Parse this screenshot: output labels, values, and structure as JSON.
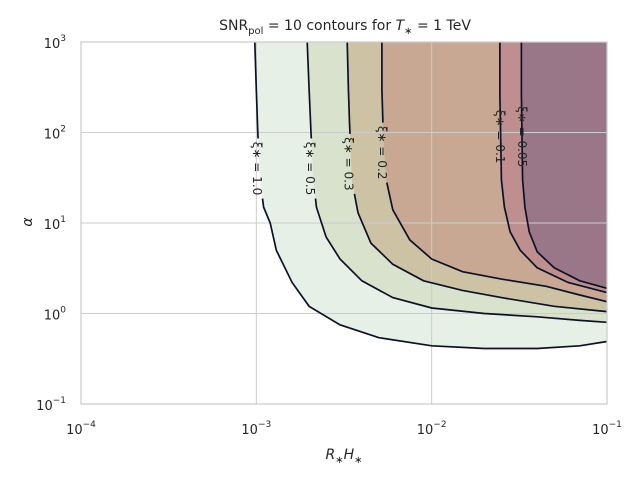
{
  "chart_data": {
    "type": "contour",
    "title": {
      "prefix": "SNR",
      "subscript": "pol",
      "middle": " = 10 contours for ",
      "var": "T",
      "var_sub": "∗",
      "suffix": " = 1 TeV"
    },
    "xlabel": {
      "a": "R",
      "a_sub": "∗",
      "b": "H",
      "b_sub": "∗"
    },
    "ylabel": "α",
    "x_scale": "log",
    "y_scale": "log",
    "xlim": [
      0.0001,
      0.1
    ],
    "ylim": [
      0.1,
      1000
    ],
    "grid": true,
    "x_ticks": [
      {
        "base": "10",
        "exp": "−4",
        "value": 0.0001
      },
      {
        "base": "10",
        "exp": "−3",
        "value": 0.001
      },
      {
        "base": "10",
        "exp": "−2",
        "value": 0.01
      },
      {
        "base": "10",
        "exp": "−1",
        "value": 0.1
      }
    ],
    "y_ticks": [
      {
        "base": "10",
        "exp": "−1",
        "value": 0.1
      },
      {
        "base": "10",
        "exp": "0",
        "value": 1
      },
      {
        "base": "10",
        "exp": "1",
        "value": 10
      },
      {
        "base": "10",
        "exp": "2",
        "value": 100
      },
      {
        "base": "10",
        "exp": "3",
        "value": 1000
      }
    ],
    "contours": [
      {
        "label": "ξ∗ = 1.0",
        "fill": "#e7f0e7",
        "label_at": [
          0.00101,
          40
        ],
        "points": [
          [
            0.00098,
            1000
          ],
          [
            0.001,
            300
          ],
          [
            0.00102,
            100
          ],
          [
            0.00105,
            30
          ],
          [
            0.0011,
            15
          ],
          [
            0.0012,
            10
          ],
          [
            0.0013,
            5
          ],
          [
            0.0016,
            2.2
          ],
          [
            0.002,
            1.2
          ],
          [
            0.003,
            0.75
          ],
          [
            0.005,
            0.54
          ],
          [
            0.01,
            0.44
          ],
          [
            0.02,
            0.41
          ],
          [
            0.04,
            0.41
          ],
          [
            0.07,
            0.44
          ],
          [
            0.1,
            0.49
          ]
        ]
      },
      {
        "label": "ξ∗ = 0.5",
        "fill": "#d9e2cc",
        "label_at": [
          0.00202,
          40
        ],
        "points": [
          [
            0.00195,
            1000
          ],
          [
            0.002,
            300
          ],
          [
            0.00205,
            100
          ],
          [
            0.0021,
            35
          ],
          [
            0.0022,
            15
          ],
          [
            0.0025,
            7
          ],
          [
            0.003,
            4
          ],
          [
            0.004,
            2.3
          ],
          [
            0.006,
            1.5
          ],
          [
            0.01,
            1.15
          ],
          [
            0.02,
            1.0
          ],
          [
            0.04,
            0.92
          ],
          [
            0.07,
            0.84
          ],
          [
            0.1,
            0.8
          ]
        ]
      },
      {
        "label": "ξ∗ = 0.3",
        "fill": "#cdc2a4",
        "label_at": [
          0.00335,
          45
        ],
        "points": [
          [
            0.0033,
            1000
          ],
          [
            0.00335,
            300
          ],
          [
            0.0034,
            130
          ],
          [
            0.0035,
            30
          ],
          [
            0.0038,
            13
          ],
          [
            0.0045,
            6
          ],
          [
            0.006,
            3.5
          ],
          [
            0.009,
            2.3
          ],
          [
            0.015,
            1.8
          ],
          [
            0.025,
            1.5
          ],
          [
            0.05,
            1.2
          ],
          [
            0.1,
            1.05
          ]
        ]
      },
      {
        "label": "ξ∗ = 0.2",
        "fill": "#c8a893",
        "label_at": [
          0.0052,
          60
        ],
        "points": [
          [
            0.0052,
            1000
          ],
          [
            0.0052,
            300
          ],
          [
            0.0053,
            90
          ],
          [
            0.0055,
            30
          ],
          [
            0.006,
            14
          ],
          [
            0.0075,
            6.5
          ],
          [
            0.01,
            4
          ],
          [
            0.015,
            2.9
          ],
          [
            0.025,
            2.4
          ],
          [
            0.045,
            2.0
          ],
          [
            0.07,
            1.6
          ],
          [
            0.1,
            1.35
          ]
        ]
      },
      {
        "label": "ξ∗ = 0.1",
        "fill": "#be8f8e",
        "label_at": [
          0.0245,
          90
        ],
        "points": [
          [
            0.0245,
            1000
          ],
          [
            0.0245,
            250
          ],
          [
            0.025,
            30
          ],
          [
            0.026,
            15
          ],
          [
            0.028,
            8
          ],
          [
            0.032,
            5
          ],
          [
            0.04,
            3.2
          ],
          [
            0.06,
            2.2
          ],
          [
            0.1,
            1.7
          ]
        ]
      },
      {
        "label": "ξ∗ = 0.05",
        "fill": "#9a7788",
        "label_at": [
          0.0327,
          90
        ],
        "points": [
          [
            0.0325,
            1000
          ],
          [
            0.0325,
            260
          ],
          [
            0.033,
            30
          ],
          [
            0.034,
            15
          ],
          [
            0.036,
            8
          ],
          [
            0.04,
            4.8
          ],
          [
            0.05,
            3.2
          ],
          [
            0.07,
            2.3
          ],
          [
            0.1,
            1.9
          ]
        ]
      }
    ]
  }
}
